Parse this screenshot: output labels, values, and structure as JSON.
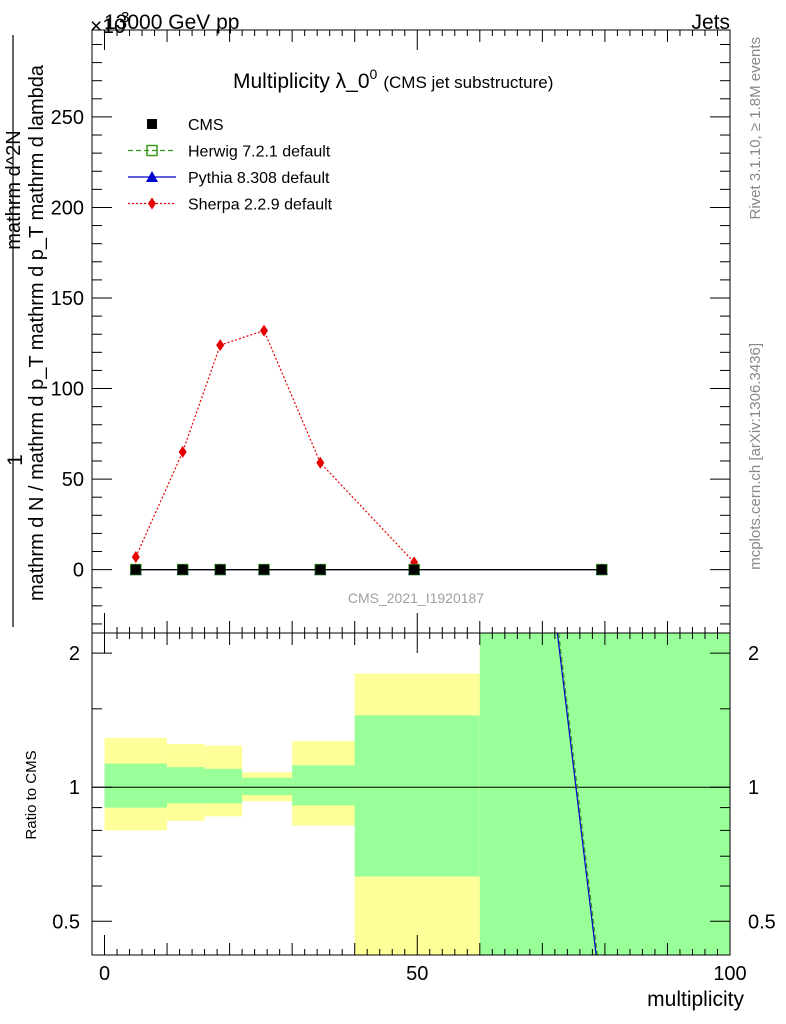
{
  "header": {
    "energy_label": "13000 GeV pp",
    "category_label": "Jets",
    "exponent_label": "×10",
    "exponent_power": "3"
  },
  "side_labels": {
    "rivet": "Rivet 3.1.10, ≥ 1.8M events",
    "mcplots": "mcplots.cern.ch [arXiv:1306.3436]"
  },
  "chart_data": [
    {
      "type": "line",
      "title": "Multiplicity λ_0",
      "title_superscript": "0",
      "subtitle": "(CMS jet substructure)",
      "watermark": "CMS_2021_I1920187",
      "ylabel_numerator": "1",
      "ylabel_denominator": "mathrm d N / mathrm d p_T mathrm d p_T mathrm d lambda",
      "ylabel_numerator2": "mathrm d^2N",
      "xlim": [
        -2,
        100
      ],
      "ylim": [
        -35,
        298
      ],
      "yticks": [
        0,
        50,
        100,
        150,
        200,
        250
      ],
      "legend_position": "top-left",
      "series": [
        {
          "name": "CMS",
          "color": "#000000",
          "marker": "square",
          "x": [
            5,
            12.5,
            18.5,
            25.5,
            34.5,
            49.5,
            79.5
          ],
          "y": [
            0,
            0,
            0,
            0,
            0,
            0,
            0
          ]
        },
        {
          "name": "Herwig 7.2.1 default",
          "color": "#3a9a1a",
          "marker": "open-square",
          "dash": "dashed",
          "x": [
            5,
            12.5,
            18.5,
            25.5,
            34.5,
            49.5,
            79.5
          ],
          "y": [
            0,
            0,
            0,
            0,
            0,
            0,
            0
          ]
        },
        {
          "name": "Pythia 8.308 default",
          "color": "#0000cc",
          "marker": "triangle",
          "x": [
            5,
            12.5,
            18.5,
            25.5,
            34.5,
            49.5,
            79.5
          ],
          "y": [
            0,
            0,
            0,
            0,
            0,
            0,
            0
          ]
        },
        {
          "name": "Sherpa 2.2.9 default",
          "color": "#e60000",
          "marker": "diamond",
          "dash": "dotted",
          "x": [
            5,
            12.5,
            18.5,
            25.5,
            34.5,
            49.5
          ],
          "y": [
            7,
            65,
            124,
            132,
            59,
            4
          ]
        }
      ]
    },
    {
      "type": "area",
      "ylabel": "Ratio to CMS",
      "xlabel": "multiplicity",
      "xlim": [
        -2,
        100
      ],
      "ylim": [
        0.42,
        2.22
      ],
      "log_scale_y": true,
      "xticks": [
        0,
        50,
        100
      ],
      "yticks": [
        0.5,
        1,
        2
      ],
      "reference_line": 1,
      "bins": [
        {
          "x0": 0,
          "x1": 10,
          "yellow": [
            0.8,
            1.29
          ],
          "green": [
            0.9,
            1.13
          ]
        },
        {
          "x0": 10,
          "x1": 16,
          "yellow": [
            0.84,
            1.25
          ],
          "green": [
            0.92,
            1.11
          ]
        },
        {
          "x0": 16,
          "x1": 22,
          "yellow": [
            0.86,
            1.24
          ],
          "green": [
            0.92,
            1.1
          ]
        },
        {
          "x0": 22,
          "x1": 30,
          "yellow": [
            0.93,
            1.08
          ],
          "green": [
            0.96,
            1.05
          ]
        },
        {
          "x0": 30,
          "x1": 40,
          "yellow": [
            0.82,
            1.27
          ],
          "green": [
            0.91,
            1.12
          ]
        },
        {
          "x0": 40,
          "x1": 60,
          "yellow": [
            0.42,
            1.8
          ],
          "green": [
            0.63,
            1.45
          ]
        },
        {
          "x0": 60,
          "x1": 100,
          "yellow": [
            0.42,
            2.22
          ],
          "green": [
            0.42,
            2.22
          ]
        }
      ],
      "ratio_lines": [
        {
          "name": "Herwig 7.2.1 default",
          "color": "#3a9a1a",
          "dash": "dashed",
          "x": [
            72.6,
            78.8
          ],
          "y": [
            2.22,
            0.42
          ]
        },
        {
          "name": "Pythia 8.308 default",
          "color": "#0000cc",
          "x": [
            72.4,
            78.6
          ],
          "y": [
            2.22,
            0.42
          ]
        }
      ]
    }
  ]
}
